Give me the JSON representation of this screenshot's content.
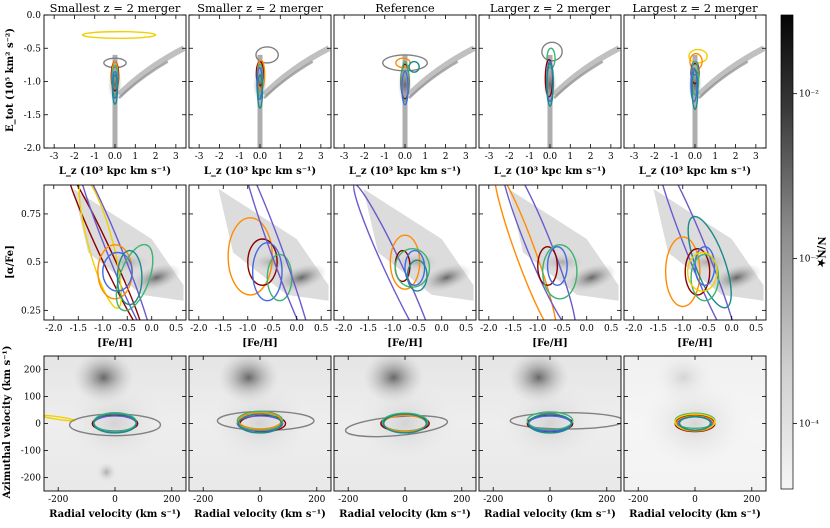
{
  "columns": [
    "Smallest z = 2 merger",
    "Smaller z = 2 merger",
    "Reference",
    "Larger z = 2 merger",
    "Largest z = 2 merger"
  ],
  "colorbar": {
    "label": "N/N★",
    "tick_labels": [
      "10⁻²",
      "10⁻³",
      "10⁻⁴"
    ],
    "tick_values": [
      0.01,
      0.001,
      0.0001
    ],
    "range": [
      4e-05,
      0.03
    ],
    "scale": "log"
  },
  "contour_colors": {
    "darkred": "#8b0000",
    "blue": "#4169e1",
    "teal": "#1a8a8a",
    "green": "#3cb371",
    "orange": "#ff8c00",
    "yellow": "#f0d000",
    "purple": "#6a5acd",
    "gray": "#808080"
  },
  "chart_data": [
    {
      "type": "scatter",
      "row": 1,
      "description_kind": "density histogram with contours",
      "xlabel": "L_z (10³ kpc km s⁻¹)",
      "ylabel": "E_tot (10⁵ km² s⁻²)",
      "xlim": [
        -3.5,
        3.5
      ],
      "ylim": [
        -2.0,
        0.0
      ],
      "xticks": [
        -3,
        -2,
        -1,
        0,
        1,
        2,
        3
      ],
      "xtick_labels": [
        "-3",
        "-2",
        "-1",
        "0.0",
        "1",
        "2",
        "3"
      ],
      "yticks": [
        -2.0,
        -1.5,
        -1.0,
        -0.5,
        0.0
      ],
      "ytick_labels": [
        "-2.0",
        "-1.5",
        "-1.0",
        "-0.5",
        "0.0"
      ]
    },
    {
      "type": "scatter",
      "row": 2,
      "description_kind": "density histogram with contours",
      "xlabel": "[Fe/H]",
      "ylabel": "[α/Fe]",
      "xlim": [
        -2.2,
        0.7
      ],
      "ylim": [
        0.2,
        0.9
      ],
      "xticks": [
        -2.0,
        -1.5,
        -1.0,
        -0.5,
        0.0,
        0.5
      ],
      "xtick_labels": [
        "-2.0",
        "-1.5",
        "-1.0",
        "-0.5",
        "0.0",
        "0.5"
      ],
      "yticks": [
        0.25,
        0.5,
        0.75
      ],
      "ytick_labels": [
        "0.25",
        "0.5",
        "0.75"
      ]
    },
    {
      "type": "scatter",
      "row": 3,
      "description_kind": "density histogram with contours",
      "xlabel": "Radial velocity (km s⁻¹)",
      "ylabel": "Azimuthal velocity (km s⁻¹)",
      "xlim": [
        -250,
        250
      ],
      "ylim": [
        -250,
        250
      ],
      "xticks": [
        -200,
        0,
        200
      ],
      "xtick_labels": [
        "-200",
        "0",
        "200"
      ],
      "yticks": [
        -200,
        -100,
        0,
        100,
        200
      ],
      "ytick_labels": [
        "-200",
        "-100",
        "0",
        "100",
        "200"
      ]
    }
  ]
}
